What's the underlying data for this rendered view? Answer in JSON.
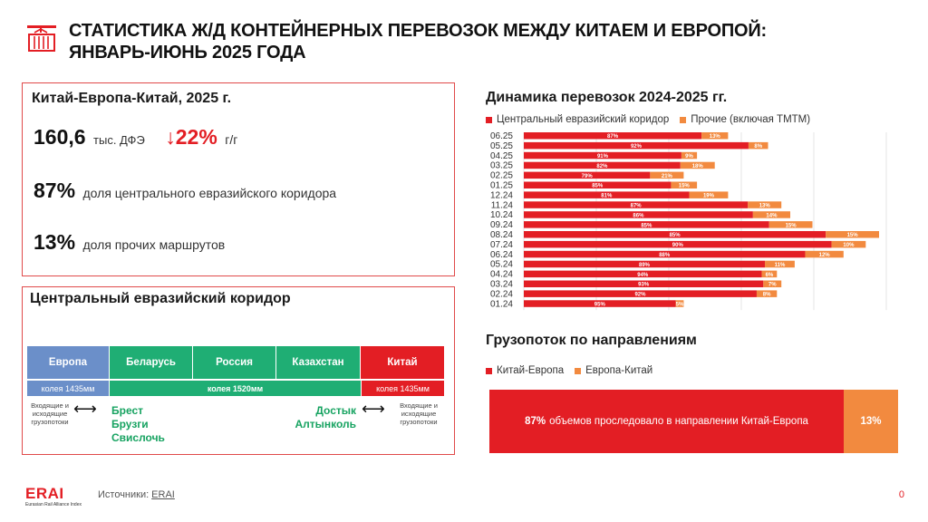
{
  "header": {
    "title_line1": "СТАТИСТИКА Ж/Д КОНТЕЙНЕРНЫХ ПЕРЕВОЗОК МЕЖДУ КИТАЕМ И ЕВРОПОЙ:",
    "title_line2": "ЯНВАРЬ-ИЮНЬ 2025 ГОДА",
    "icon": "container-crane-icon"
  },
  "summary": {
    "title": "Китай-Европа-Китай,  2025 г.",
    "volume": "160,6",
    "volume_unit": "тыс. ДФЭ",
    "change_arrow": "↓",
    "change": "22%",
    "change_unit": "г/г",
    "central_share": "87%",
    "central_label": "доля центрального евразийского коридора",
    "other_share": "13%",
    "other_label": "доля прочих маршрутов"
  },
  "corridor": {
    "title": "Центральный евразийский коридор",
    "countries": [
      "Европа",
      "Беларусь",
      "Россия",
      "Казахстан",
      "Китай"
    ],
    "gauge_left": "колея 1435мм",
    "gauge_mid": "колея 1520мм",
    "gauge_right": "колея 1435мм",
    "flows_left": "Входящие и исходящие грузопотоки",
    "flows_right": "Входящие и исходящие грузопотоки",
    "arrow": "⟷",
    "stations_west": [
      "Брест",
      "Брузги",
      "Свислочь"
    ],
    "stations_east": [
      "Достык",
      "Алтынколь"
    ]
  },
  "colors": {
    "red": "#e31e24",
    "orange": "#f28a3f",
    "green": "#1fae74",
    "blue": "#6b8fc9",
    "border": "#e04a4a"
  },
  "chart_data": {
    "type": "bar",
    "orientation": "horizontal",
    "stacked": true,
    "title": "Динамика перевозок 2024-2025  гг.",
    "legend_position": "top",
    "grid": true,
    "categories": [
      "06.25",
      "05.25",
      "04.25",
      "03.25",
      "02.25",
      "01.25",
      "12.24",
      "11.24",
      "10.24",
      "09.24",
      "08.24",
      "07.24",
      "06.24",
      "05.24",
      "04.24",
      "03.24",
      "02.24",
      "01.24"
    ],
    "series": [
      {
        "name": "Центральный евразийский коридор",
        "color": "#e31e24",
        "values": [
          87,
          92,
          91,
          82,
          79,
          85,
          81,
          87,
          86,
          85,
          85,
          90,
          88,
          89,
          94,
          93,
          92,
          95
        ]
      },
      {
        "name": "Прочие (включая ТМТМ)",
        "color": "#f28a3f",
        "values": [
          13,
          8,
          9,
          18,
          21,
          15,
          19,
          13,
          14,
          15,
          15,
          10,
          12,
          11,
          6,
          7,
          8,
          5
        ]
      }
    ],
    "relative_totals": [
      46,
      55,
      39,
      43,
      36,
      39,
      46,
      58,
      60,
      65,
      80,
      77,
      72,
      61,
      57,
      58,
      57,
      36
    ]
  },
  "direction": {
    "title": "Грузопоток по направлениям",
    "legend": [
      {
        "label": "Китай-Европа",
        "color": "#e31e24"
      },
      {
        "label": "Европа-Китай",
        "color": "#f28a3f"
      }
    ],
    "share_main": "87%",
    "share_main_text": "объемов проследовало в направлении Китай-Европа",
    "share_other": "13%"
  },
  "footer": {
    "logo": "ERAI",
    "logo_sub": "Eurasian Rail Alliance Index",
    "sources_label": "Источники:",
    "sources_link": "ERAI",
    "page": "0"
  }
}
